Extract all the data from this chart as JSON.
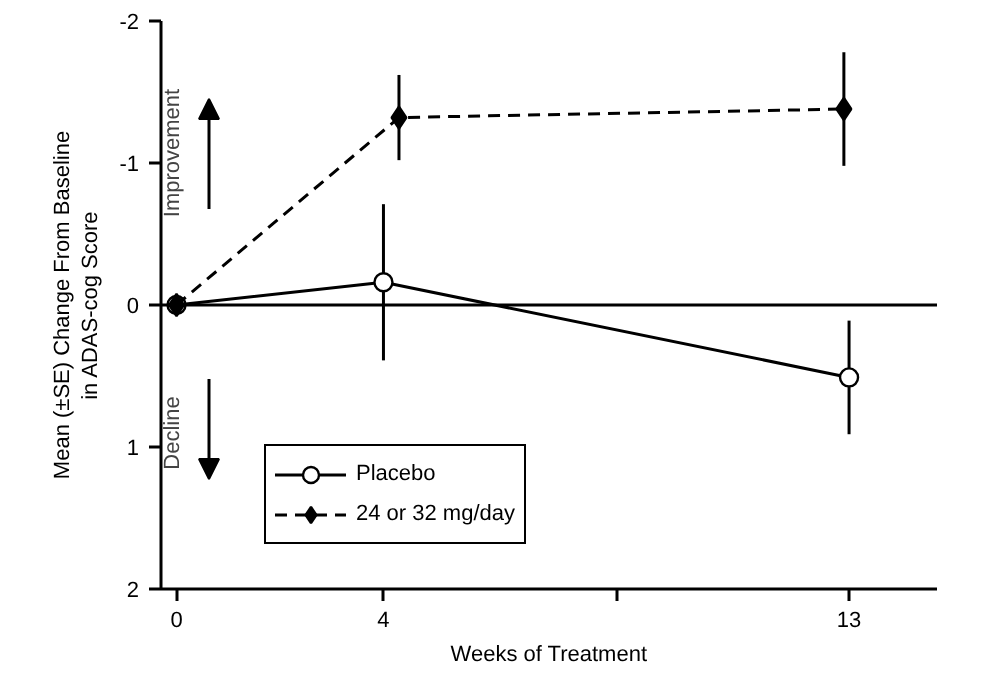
{
  "chart_data": {
    "type": "line",
    "xlabel": "Weeks of Treatment",
    "ylabel": "Mean (±SE) Change From Baseline\nin ADAS-cog Score",
    "xlim": [
      -0.3,
      14.7
    ],
    "ylim": [
      2,
      -2
    ],
    "xticks": [
      0,
      4,
      {
        "value": 8.5,
        "label": null
      },
      13
    ],
    "yticks": [
      -2,
      -1,
      0,
      1,
      2
    ],
    "series": [
      {
        "name": "Placebo",
        "color": "#000000",
        "marker": "circle",
        "line_style": "solid",
        "x": [
          0,
          4,
          13
        ],
        "values": [
          0,
          -0.16,
          0.51
        ],
        "errors": [
          null,
          0.55,
          0.4
        ]
      },
      {
        "name": "24 or 32 mg/day",
        "color": "#000000",
        "marker": "diamond",
        "line_style": "dashed",
        "x": [
          0,
          4.3,
          12.9
        ],
        "values": [
          0,
          -1.32,
          -1.38
        ],
        "errors": [
          null,
          0.3,
          0.4
        ]
      }
    ],
    "ref_lines": [
      {
        "axis": "y",
        "value": 0,
        "color": "#000000",
        "line_style": "solid"
      }
    ],
    "annotations": [
      "Improvement",
      "Decline"
    ],
    "legend": "bottom left",
    "grid": false
  }
}
